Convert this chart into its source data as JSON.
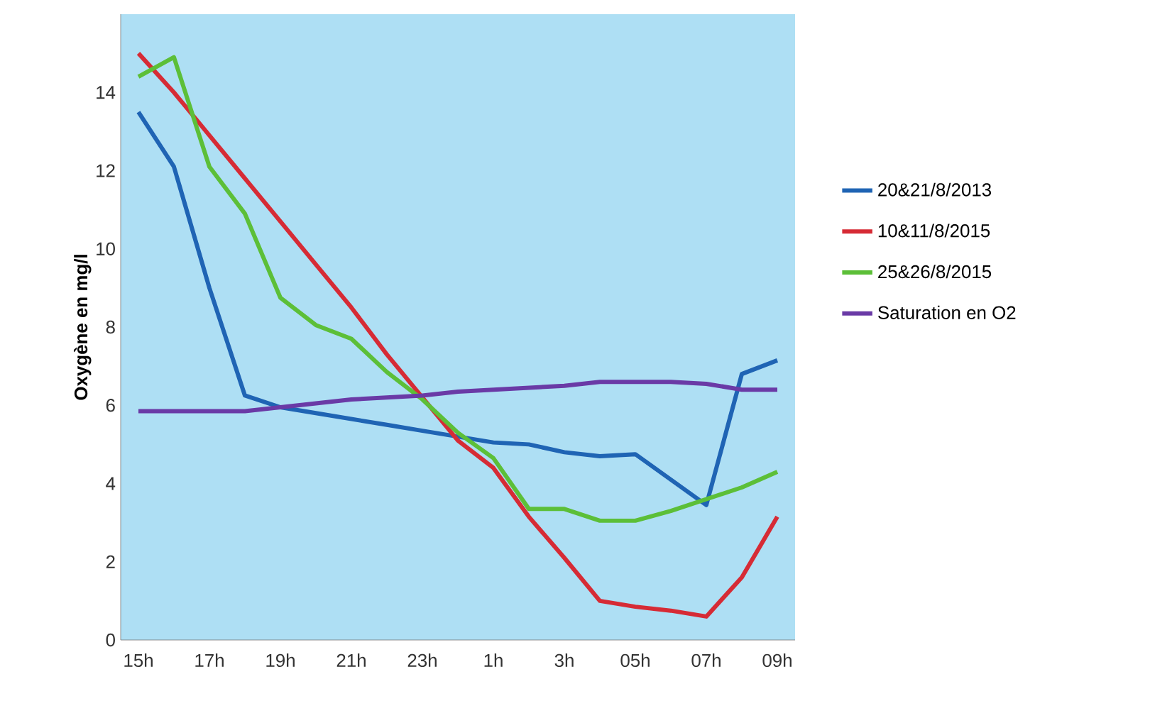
{
  "chart_data": {
    "type": "line",
    "ylabel": "Oxygène en mg/l",
    "categories": [
      "15h",
      null,
      "17h",
      null,
      "19h",
      null,
      "21h",
      null,
      "23h",
      null,
      "1h",
      null,
      "3h",
      null,
      "05h",
      null,
      "07h",
      null,
      "09h"
    ],
    "ylim": [
      0,
      16
    ],
    "yticks": [
      0,
      2,
      4,
      6,
      8,
      10,
      12,
      14
    ],
    "grid": false,
    "legend": "right",
    "marker": "none",
    "line_style": "solid",
    "series": [
      {
        "name": "20&21/8/2013",
        "color": "#1f64b4",
        "values": [
          13.5,
          12.1,
          9.0,
          6.25,
          5.95,
          5.8,
          5.65,
          5.5,
          5.35,
          5.2,
          5.05,
          5.0,
          4.8,
          4.7,
          4.75,
          4.1,
          3.45,
          6.8,
          7.15
        ]
      },
      {
        "name": "10&11/8/2015",
        "color": "#d62b35",
        "values": [
          15.0,
          14.0,
          12.9,
          11.8,
          10.7,
          9.6,
          8.5,
          7.3,
          6.2,
          5.1,
          4.4,
          3.15,
          2.1,
          1.0,
          0.85,
          0.75,
          0.6,
          1.6,
          3.15
        ]
      },
      {
        "name": "25&26/8/2015",
        "color": "#5cbf38",
        "values": [
          14.4,
          14.9,
          12.1,
          10.9,
          8.75,
          8.05,
          7.7,
          6.85,
          6.15,
          5.3,
          4.65,
          3.35,
          3.35,
          3.05,
          3.05,
          3.3,
          3.6,
          3.9,
          4.3
        ]
      },
      {
        "name": "Saturation en O2",
        "color": "#6a3aa6",
        "values": [
          5.85,
          5.85,
          5.85,
          5.85,
          5.95,
          6.05,
          6.15,
          6.2,
          6.25,
          6.35,
          6.4,
          6.45,
          6.5,
          6.6,
          6.6,
          6.6,
          6.55,
          6.4,
          6.4
        ]
      }
    ]
  }
}
